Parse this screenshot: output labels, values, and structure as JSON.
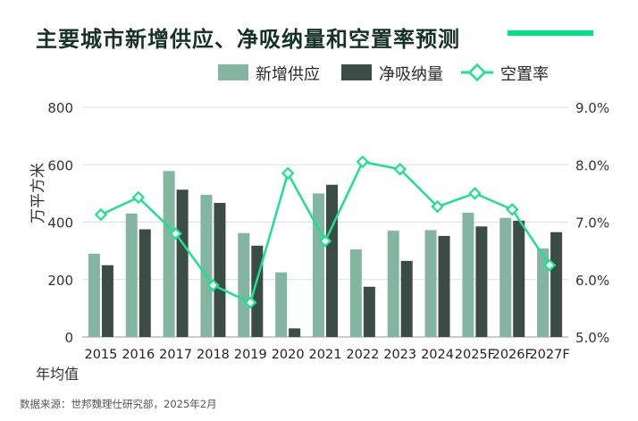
{
  "title": "主要城市新增供应、净吸纳量和空置率预测",
  "footer": "数据来源：世邦魏理仕研究部，2025年2月",
  "unit_note": "年均值",
  "colors": {
    "supply": "#84b5a3",
    "absorption": "#3b4c47",
    "vacancy": "#1ee08f",
    "accent": "#00e08a",
    "grid": "#dddddd"
  },
  "legend": {
    "supply": "新增供应",
    "absorption": "净吸纳量",
    "vacancy": "空置率"
  },
  "chart_data": {
    "type": "bar",
    "title": "主要城市新增供应、净吸纳量和空置率预测",
    "ylabel": "万平方米",
    "ylabel_right": "",
    "categories": [
      "2015",
      "2016",
      "2017",
      "2018",
      "2019",
      "2020",
      "2021",
      "2022",
      "2023",
      "2024",
      "2025F",
      "2026F",
      "2027F"
    ],
    "series": [
      {
        "name": "新增供应",
        "type": "bar",
        "axis": "left",
        "values": [
          290,
          430,
          578,
          495,
          362,
          225,
          500,
          305,
          370,
          372,
          433,
          415,
          308
        ]
      },
      {
        "name": "净吸纳量",
        "type": "bar",
        "axis": "left",
        "values": [
          250,
          375,
          513,
          467,
          318,
          30,
          530,
          175,
          265,
          352,
          385,
          405,
          365
        ]
      },
      {
        "name": "空置率",
        "type": "line",
        "axis": "right",
        "values": [
          7.13,
          7.43,
          6.8,
          5.9,
          5.6,
          7.85,
          6.67,
          8.05,
          7.92,
          7.27,
          7.5,
          7.22,
          6.25
        ]
      }
    ],
    "ylim": [
      0,
      800
    ],
    "yticks": [
      "0",
      "200",
      "400",
      "600",
      "800"
    ],
    "y2lim": [
      5.0,
      9.0
    ],
    "y2ticks": [
      "5.0%",
      "6.0%",
      "7.0%",
      "8.0%",
      "9.0%"
    ],
    "grid": true,
    "legend_position": "top-right"
  }
}
